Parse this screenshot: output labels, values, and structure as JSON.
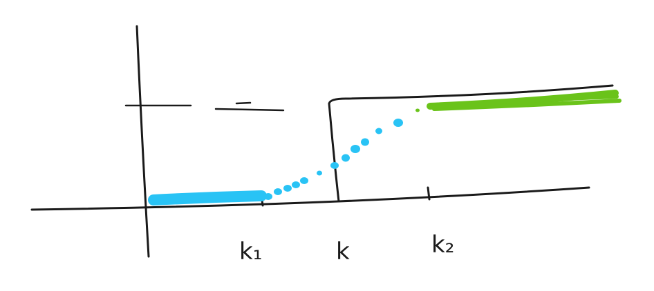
{
  "diagram": {
    "tick_labels": {
      "k1": "k₁",
      "k": "k",
      "k2": "k₂"
    },
    "colors": {
      "ink": "#1a1a1a",
      "blue": "#29c3f5",
      "green": "#6ac31a"
    }
  }
}
